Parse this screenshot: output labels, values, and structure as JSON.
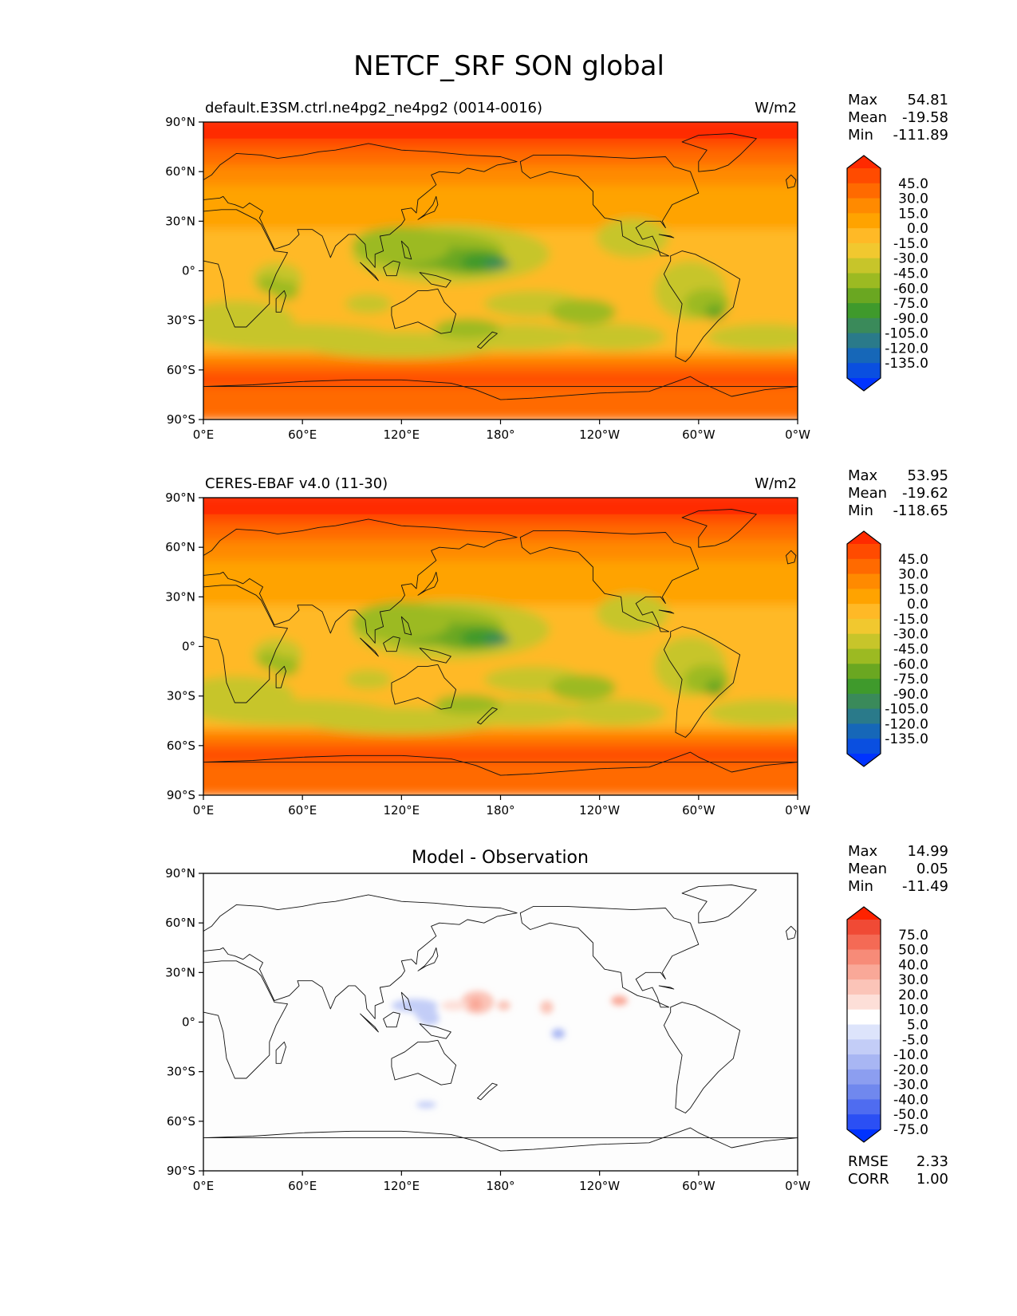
{
  "title": "NETCF_SRF SON global",
  "panels": [
    {
      "title_left": "default.E3SM.ctrl.ne4pg2_ne4pg2 (0014-0016)",
      "title_center": "",
      "units": "W/m2",
      "stats": [
        {
          "label": "Max",
          "value": "54.81"
        },
        {
          "label": "Mean",
          "value": "-19.58"
        },
        {
          "label": "Min",
          "value": "-111.89"
        }
      ],
      "colorbar": {
        "labels": [
          "45.0",
          "30.0",
          "15.0",
          "0.0",
          "-15.0",
          "-30.0",
          "-45.0",
          "-60.0",
          "-75.0",
          "-90.0",
          "-105.0",
          "-120.0",
          "-135.0"
        ],
        "colors": [
          "#ff2a00",
          "#ff4b00",
          "#ff6a00",
          "#ff8a00",
          "#ffa300",
          "#ffb926",
          "#f1c82f",
          "#c7c52a",
          "#9cba22",
          "#6aa721",
          "#3f9a2c",
          "#3a8a5a",
          "#2a7a8a",
          "#1667b8",
          "#0a4fe0",
          "#0033ff"
        ]
      },
      "map": {
        "kind": "absolute"
      }
    },
    {
      "title_left": "CERES-EBAF v4.0 (11-30)",
      "title_center": "",
      "units": "W/m2",
      "stats": [
        {
          "label": "Max",
          "value": "53.95"
        },
        {
          "label": "Mean",
          "value": "-19.62"
        },
        {
          "label": "Min",
          "value": "-118.65"
        }
      ],
      "colorbar": {
        "labels": [
          "45.0",
          "30.0",
          "15.0",
          "0.0",
          "-15.0",
          "-30.0",
          "-45.0",
          "-60.0",
          "-75.0",
          "-90.0",
          "-105.0",
          "-120.0",
          "-135.0"
        ],
        "colors": [
          "#ff2a00",
          "#ff4b00",
          "#ff6a00",
          "#ff8a00",
          "#ffa300",
          "#ffb926",
          "#f1c82f",
          "#c7c52a",
          "#9cba22",
          "#6aa721",
          "#3f9a2c",
          "#3a8a5a",
          "#2a7a8a",
          "#1667b8",
          "#0a4fe0",
          "#0033ff"
        ]
      },
      "map": {
        "kind": "absolute"
      }
    },
    {
      "title_left": "",
      "title_center": "Model - Observation",
      "units": "",
      "stats": [
        {
          "label": "Max",
          "value": "14.99"
        },
        {
          "label": "Mean",
          "value": "0.05"
        },
        {
          "label": "Min",
          "value": "-11.49"
        }
      ],
      "colorbar": {
        "labels": [
          "75.0",
          "50.0",
          "40.0",
          "30.0",
          "20.0",
          "10.0",
          "5.0",
          "-5.0",
          "-10.0",
          "-20.0",
          "-30.0",
          "-40.0",
          "-50.0",
          "-75.0"
        ],
        "colors": [
          "#ff2200",
          "#f04a35",
          "#f46a55",
          "#f78b78",
          "#f9a898",
          "#fbc4b8",
          "#fddfd8",
          "#ffffff",
          "#dde4fb",
          "#c3cdf7",
          "#a8b6f3",
          "#8c9ef0",
          "#7088ee",
          "#4f6cf0",
          "#2b4ff4",
          "#0033ff"
        ]
      },
      "map": {
        "kind": "difference"
      },
      "extra_stats": [
        {
          "label": "RMSE",
          "value": "2.33"
        },
        {
          "label": "CORR",
          "value": "1.00"
        }
      ]
    }
  ],
  "lat_labels": [
    "90°N",
    "60°N",
    "30°N",
    "0°",
    "30°S",
    "60°S",
    "90°S"
  ],
  "lon_labels": [
    "0°E",
    "60°E",
    "120°E",
    "180°",
    "120°W",
    "60°W",
    "0°W"
  ]
}
